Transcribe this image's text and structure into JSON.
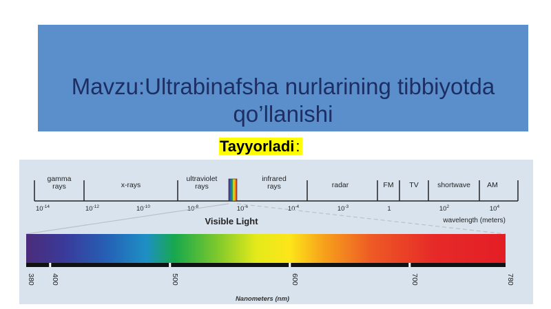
{
  "slide": {
    "title": "Mavzu:Ultrabinafsha nurlarining tibbiyotda\nqo’llanishi",
    "author_label": "Tayyorladi",
    "author_colon": ":"
  },
  "spectrum": {
    "bands": [
      {
        "label": "gamma\nrays"
      },
      {
        "label": "x-rays"
      },
      {
        "label": "ultraviolet\nrays"
      },
      {
        "label": "infrared\nrays"
      },
      {
        "label": "radar"
      },
      {
        "label": "FM"
      },
      {
        "label": "TV"
      },
      {
        "label": "shortwave"
      },
      {
        "label": "AM"
      }
    ],
    "wavelength_ticks": [
      {
        "base": "10",
        "exp": "-14"
      },
      {
        "base": "10",
        "exp": "-12"
      },
      {
        "base": "10",
        "exp": "-10"
      },
      {
        "base": "10",
        "exp": "-8"
      },
      {
        "base": "10",
        "exp": "-6"
      },
      {
        "base": "10",
        "exp": "-4"
      },
      {
        "base": "10",
        "exp": "-3"
      },
      {
        "base": "1",
        "exp": ""
      },
      {
        "base": "10",
        "exp": "2"
      },
      {
        "base": "10",
        "exp": "4"
      }
    ],
    "wavelength_unit": "wavelength (meters)",
    "visible_light_label": "Visible Light",
    "nm_ticks": [
      380,
      400,
      500,
      600,
      700,
      780
    ],
    "nm_axis_label": "Nanometers (nm)",
    "colors": {
      "panel_bg": "#d9e3ed",
      "title_bg": "#5b8fcb",
      "title_text": "#1c2e63",
      "highlight": "#ffff00"
    }
  }
}
